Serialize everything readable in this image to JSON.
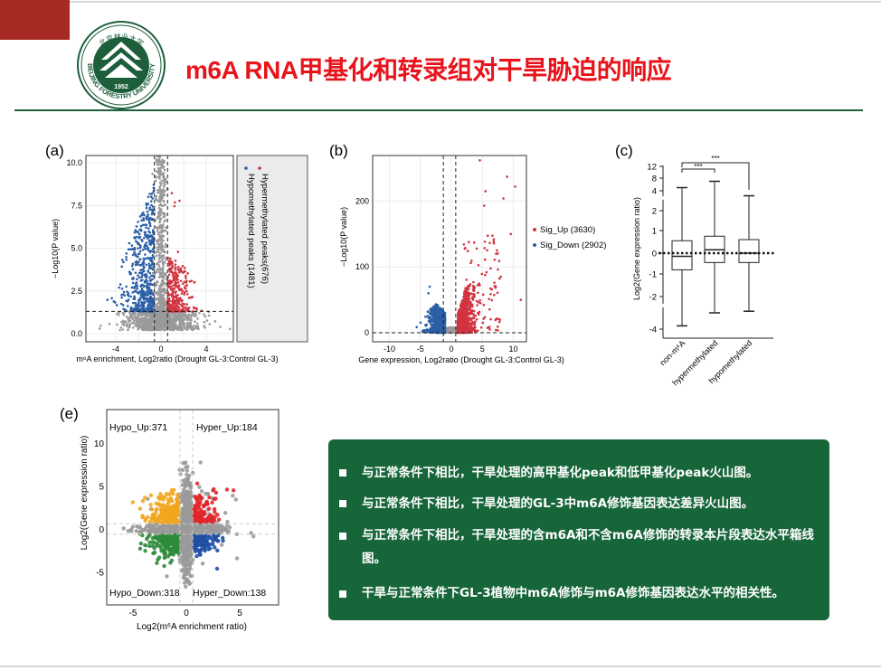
{
  "slide": {
    "title": "m6A RNA甲基化和转录组对干旱胁迫的响应",
    "logo": {
      "top_text": "北京林业大学",
      "ring_text": "BEIJING FORESTRY UNIVERSITY",
      "year": "1952"
    },
    "bullets": [
      "与正常条件下相比，干旱处理的高甲基化peak和低甲基化peak火山图。",
      "与正常条件下相比，干旱处理的GL-3中m6A修饰基因表达差异火山图。",
      "与正常条件下相比，干旱处理的含m6A和不含m6A修饰的转录本片段表达水平箱线图。",
      "干旱与正常条件下GL-3植物中m6A修饰与m6A修饰基因表达水平的相关性。"
    ],
    "colors": {
      "title": "#e8141b",
      "brand_green": "#1f5f3e",
      "box_green": "#17663a",
      "accent_red": "#a52a22"
    }
  },
  "chart_data": [
    {
      "panel": "(a)",
      "type": "scatter",
      "subtype": "volcano",
      "xlabel": "m⁶A enrichment, Log2ratio (Drought GL-3:Control GL-3)",
      "ylabel": "−Log10(P value)",
      "xticks": [
        "-4",
        "0",
        "4"
      ],
      "yticks": [
        "0.0",
        "2.5",
        "5.0",
        "7.5",
        "10.0"
      ],
      "xlim": [
        -7,
        6.5
      ],
      "ylim": [
        -0.3,
        10.5
      ],
      "thresholds": {
        "x": [
          -0.58,
          0.58
        ],
        "y": 1.3
      },
      "legend": [
        {
          "label": "Hypermethylated peaks(676)",
          "color": "#d1343f",
          "count": 676
        },
        {
          "label": "Hypomethylated peaks (1481)",
          "color": "#2b5fa6",
          "count": 1481
        }
      ],
      "legend_position": "right",
      "grid": true
    },
    {
      "panel": "(b)",
      "type": "scatter",
      "subtype": "volcano",
      "xlabel": "Gene expression, Log2ratio (Drought GL-3:Control GL-3)",
      "ylabel": "−Log10(P value)",
      "xticks": [
        "-10",
        "-5",
        "0",
        "5",
        "10"
      ],
      "yticks": [
        "0",
        "100",
        "200"
      ],
      "xlim": [
        -13,
        12
      ],
      "ylim": [
        -15,
        275
      ],
      "thresholds": {
        "x": [
          -1,
          1
        ],
        "y": 0
      },
      "legend": [
        {
          "label": "Sig_Up (3630)",
          "color": "#d1343f",
          "count": 3630
        },
        {
          "label": "Sig_Down (2902)",
          "color": "#2b5fa6",
          "count": 2902
        }
      ],
      "legend_position": "right",
      "grid": true
    },
    {
      "panel": "(c)",
      "type": "box",
      "ylabel": "Log2(Gene expression ratio)",
      "yticks": [
        "-4",
        "-2",
        "-1",
        "0",
        "1",
        "2",
        "4",
        "8",
        "12"
      ],
      "categories": [
        "non-m⁶A",
        "hypermethylated",
        "hypomethylated"
      ],
      "boxes": [
        {
          "whisker_low": -3.8,
          "q1": -0.8,
          "median": -0.15,
          "q3": 0.55,
          "whisker_high": 5
        },
        {
          "whisker_low": -3.0,
          "q1": -0.45,
          "median": 0.15,
          "q3": 0.75,
          "whisker_high": 7
        },
        {
          "whisker_low": -2.9,
          "q1": -0.45,
          "median": 0.0,
          "q3": 0.6,
          "whisker_high": 3.5
        }
      ],
      "significance": [
        "***",
        "***"
      ],
      "reference_line": 0
    },
    {
      "panel": "(e)",
      "type": "scatter",
      "subtype": "quadrant",
      "xlabel": "Log2(m⁶A enrichment ratio)",
      "ylabel": "Log2(Gene expression ratio)",
      "xticks": [
        "-5",
        "0",
        "5"
      ],
      "yticks": [
        "-5",
        "0",
        "5",
        "10"
      ],
      "xlim": [
        -8,
        9
      ],
      "ylim": [
        -9,
        14
      ],
      "quadrants": [
        {
          "label": "Hypo_Up:371",
          "color": "#f2a61f",
          "count": 371
        },
        {
          "label": "Hyper_Up:184",
          "color": "#e0262b",
          "count": 184
        },
        {
          "label": "Hypo_Down:318",
          "color": "#2e8b3a",
          "count": 318
        },
        {
          "label": "Hyper_Down:138",
          "color": "#1f4fa3",
          "count": 138
        }
      ]
    }
  ]
}
